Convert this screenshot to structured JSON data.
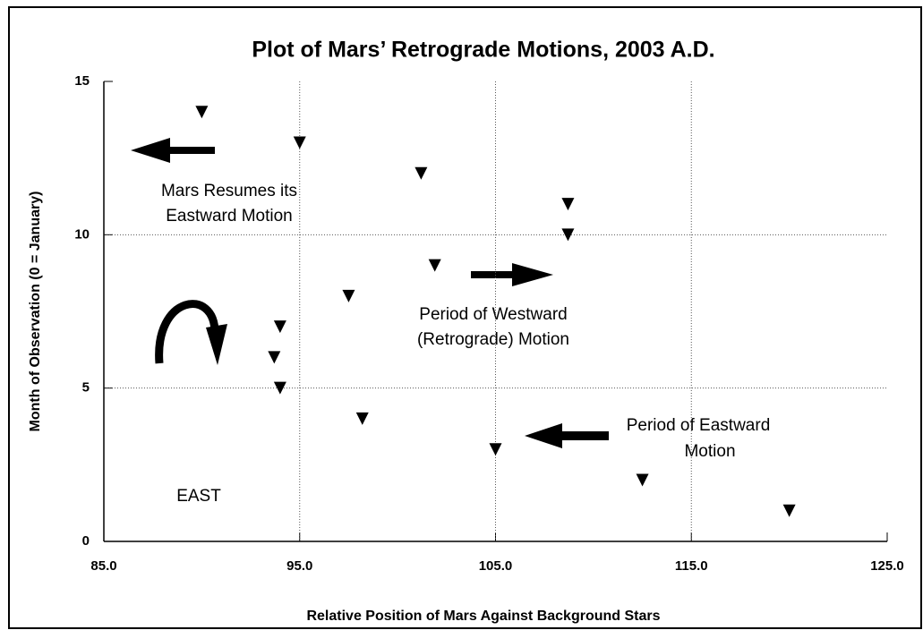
{
  "chart_data": {
    "type": "scatter",
    "title": "Plot of Mars’ Retrograde Motions, 2003 A.D.",
    "x_label": "Relative Position of Mars Against Background Stars",
    "y_label": "Month of Observation (0 = January)",
    "series": [
      {
        "name": "Mars",
        "color": "#000000",
        "x": [
          90,
          95,
          101.2,
          108.7,
          108.7,
          101.9,
          97.5,
          94,
          93.7,
          94,
          98.2,
          105,
          112.5,
          120
        ],
        "values": [
          14,
          13,
          12,
          11,
          10,
          9,
          8,
          7,
          6,
          5,
          4,
          3,
          2,
          1
        ]
      }
    ],
    "xlim": [
      85,
      125
    ],
    "xticks": [
      {
        "value": 85,
        "label": "85.0"
      },
      {
        "value": 95,
        "label": "95.0"
      },
      {
        "value": 105,
        "label": "105.0"
      },
      {
        "value": 115,
        "label": "115.0"
      },
      {
        "value": 125,
        "label": "125.0"
      }
    ],
    "ylim": [
      0,
      15
    ],
    "yticks": [
      0,
      5,
      10,
      15
    ],
    "grid": true,
    "annotations": [
      "Mars Resumes its",
      "Eastward Motion",
      "Period of Westward",
      "(Retrograde) Motion",
      "Period of Eastward",
      "Motion",
      "EAST"
    ]
  }
}
